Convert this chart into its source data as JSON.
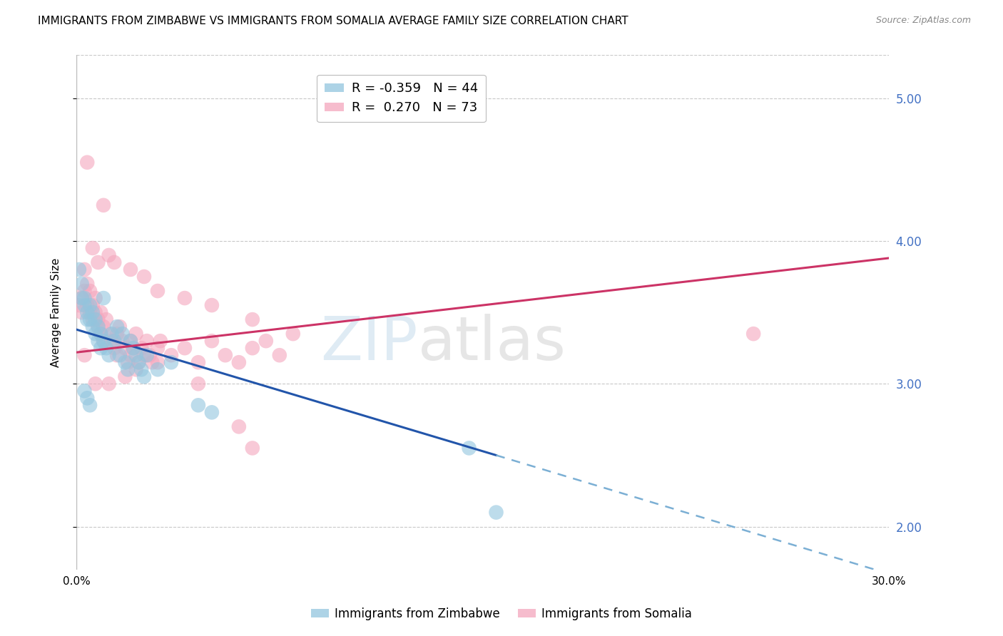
{
  "title": "IMMIGRANTS FROM ZIMBABWE VS IMMIGRANTS FROM SOMALIA AVERAGE FAMILY SIZE CORRELATION CHART",
  "source": "Source: ZipAtlas.com",
  "ylabel": "Average Family Size",
  "xlim": [
    0.0,
    0.3
  ],
  "ylim": [
    1.7,
    5.3
  ],
  "yticks": [
    2.0,
    3.0,
    4.0,
    5.0
  ],
  "xticks": [
    0.0,
    0.05,
    0.1,
    0.15,
    0.2,
    0.25,
    0.3
  ],
  "xtick_labels": [
    "0.0%",
    "",
    "",
    "",
    "",
    "",
    "30.0%"
  ],
  "right_ytick_color": "#4472c4",
  "grid_color": "#c8c8c8",
  "background_color": "#ffffff",
  "zimbabwe_color": "#92c5de",
  "somalia_color": "#f4a6bd",
  "zimbabwe_scatter": [
    [
      0.001,
      3.8
    ],
    [
      0.002,
      3.7
    ],
    [
      0.002,
      3.6
    ],
    [
      0.003,
      3.55
    ],
    [
      0.003,
      3.6
    ],
    [
      0.004,
      3.5
    ],
    [
      0.004,
      3.45
    ],
    [
      0.005,
      3.55
    ],
    [
      0.005,
      3.45
    ],
    [
      0.006,
      3.5
    ],
    [
      0.006,
      3.4
    ],
    [
      0.007,
      3.45
    ],
    [
      0.007,
      3.35
    ],
    [
      0.008,
      3.4
    ],
    [
      0.008,
      3.3
    ],
    [
      0.009,
      3.35
    ],
    [
      0.009,
      3.25
    ],
    [
      0.01,
      3.3
    ],
    [
      0.01,
      3.6
    ],
    [
      0.011,
      3.25
    ],
    [
      0.012,
      3.2
    ],
    [
      0.013,
      3.35
    ],
    [
      0.014,
      3.3
    ],
    [
      0.015,
      3.4
    ],
    [
      0.016,
      3.2
    ],
    [
      0.017,
      3.35
    ],
    [
      0.018,
      3.15
    ],
    [
      0.019,
      3.1
    ],
    [
      0.02,
      3.3
    ],
    [
      0.021,
      3.25
    ],
    [
      0.022,
      3.2
    ],
    [
      0.023,
      3.15
    ],
    [
      0.024,
      3.1
    ],
    [
      0.025,
      3.05
    ],
    [
      0.026,
      3.2
    ],
    [
      0.03,
      3.1
    ],
    [
      0.035,
      3.15
    ],
    [
      0.045,
      2.85
    ],
    [
      0.05,
      2.8
    ],
    [
      0.003,
      2.95
    ],
    [
      0.004,
      2.9
    ],
    [
      0.005,
      2.85
    ],
    [
      0.145,
      2.55
    ],
    [
      0.155,
      2.1
    ]
  ],
  "somalia_scatter": [
    [
      0.001,
      3.55
    ],
    [
      0.002,
      3.6
    ],
    [
      0.002,
      3.5
    ],
    [
      0.003,
      3.8
    ],
    [
      0.003,
      3.65
    ],
    [
      0.004,
      3.7
    ],
    [
      0.004,
      3.55
    ],
    [
      0.005,
      3.65
    ],
    [
      0.005,
      3.5
    ],
    [
      0.006,
      3.55
    ],
    [
      0.006,
      3.45
    ],
    [
      0.007,
      3.5
    ],
    [
      0.007,
      3.6
    ],
    [
      0.008,
      3.45
    ],
    [
      0.008,
      3.4
    ],
    [
      0.009,
      3.5
    ],
    [
      0.009,
      3.35
    ],
    [
      0.01,
      3.4
    ],
    [
      0.01,
      3.3
    ],
    [
      0.011,
      3.45
    ],
    [
      0.012,
      3.35
    ],
    [
      0.013,
      3.3
    ],
    [
      0.014,
      3.25
    ],
    [
      0.015,
      3.35
    ],
    [
      0.015,
      3.2
    ],
    [
      0.016,
      3.4
    ],
    [
      0.017,
      3.3
    ],
    [
      0.018,
      3.25
    ],
    [
      0.019,
      3.15
    ],
    [
      0.02,
      3.3
    ],
    [
      0.02,
      3.2
    ],
    [
      0.021,
      3.25
    ],
    [
      0.022,
      3.35
    ],
    [
      0.023,
      3.15
    ],
    [
      0.024,
      3.25
    ],
    [
      0.025,
      3.2
    ],
    [
      0.026,
      3.3
    ],
    [
      0.027,
      3.2
    ],
    [
      0.028,
      3.15
    ],
    [
      0.03,
      3.25
    ],
    [
      0.031,
      3.3
    ],
    [
      0.035,
      3.2
    ],
    [
      0.04,
      3.25
    ],
    [
      0.045,
      3.15
    ],
    [
      0.05,
      3.3
    ],
    [
      0.055,
      3.2
    ],
    [
      0.06,
      3.15
    ],
    [
      0.065,
      3.25
    ],
    [
      0.07,
      3.3
    ],
    [
      0.075,
      3.2
    ],
    [
      0.08,
      3.35
    ],
    [
      0.004,
      4.55
    ],
    [
      0.006,
      3.95
    ],
    [
      0.008,
      3.85
    ],
    [
      0.01,
      4.25
    ],
    [
      0.012,
      3.9
    ],
    [
      0.014,
      3.85
    ],
    [
      0.02,
      3.8
    ],
    [
      0.025,
      3.75
    ],
    [
      0.03,
      3.65
    ],
    [
      0.04,
      3.6
    ],
    [
      0.05,
      3.55
    ],
    [
      0.065,
      3.45
    ],
    [
      0.003,
      3.2
    ],
    [
      0.007,
      3.0
    ],
    [
      0.012,
      3.0
    ],
    [
      0.018,
      3.05
    ],
    [
      0.022,
      3.1
    ],
    [
      0.03,
      3.15
    ],
    [
      0.045,
      3.0
    ],
    [
      0.06,
      2.7
    ],
    [
      0.065,
      2.55
    ],
    [
      0.25,
      3.35
    ]
  ],
  "zimbabwe_line": {
    "x0": 0.0,
    "y0": 3.38,
    "x1": 0.155,
    "y1": 2.5
  },
  "zimbabwe_line_dashed": {
    "x0": 0.155,
    "y0": 2.5,
    "x1": 0.3,
    "y1": 1.67
  },
  "somalia_line": {
    "x0": 0.0,
    "y0": 3.22,
    "x1": 0.3,
    "y1": 3.88
  },
  "legend_entries": [
    {
      "label": "R = -0.359   N = 44",
      "color": "#92c5de"
    },
    {
      "label": "R =  0.270   N = 73",
      "color": "#f4a6bd"
    }
  ],
  "title_fontsize": 11,
  "axis_fontsize": 11,
  "tick_fontsize": 11,
  "legend_fontsize": 13
}
